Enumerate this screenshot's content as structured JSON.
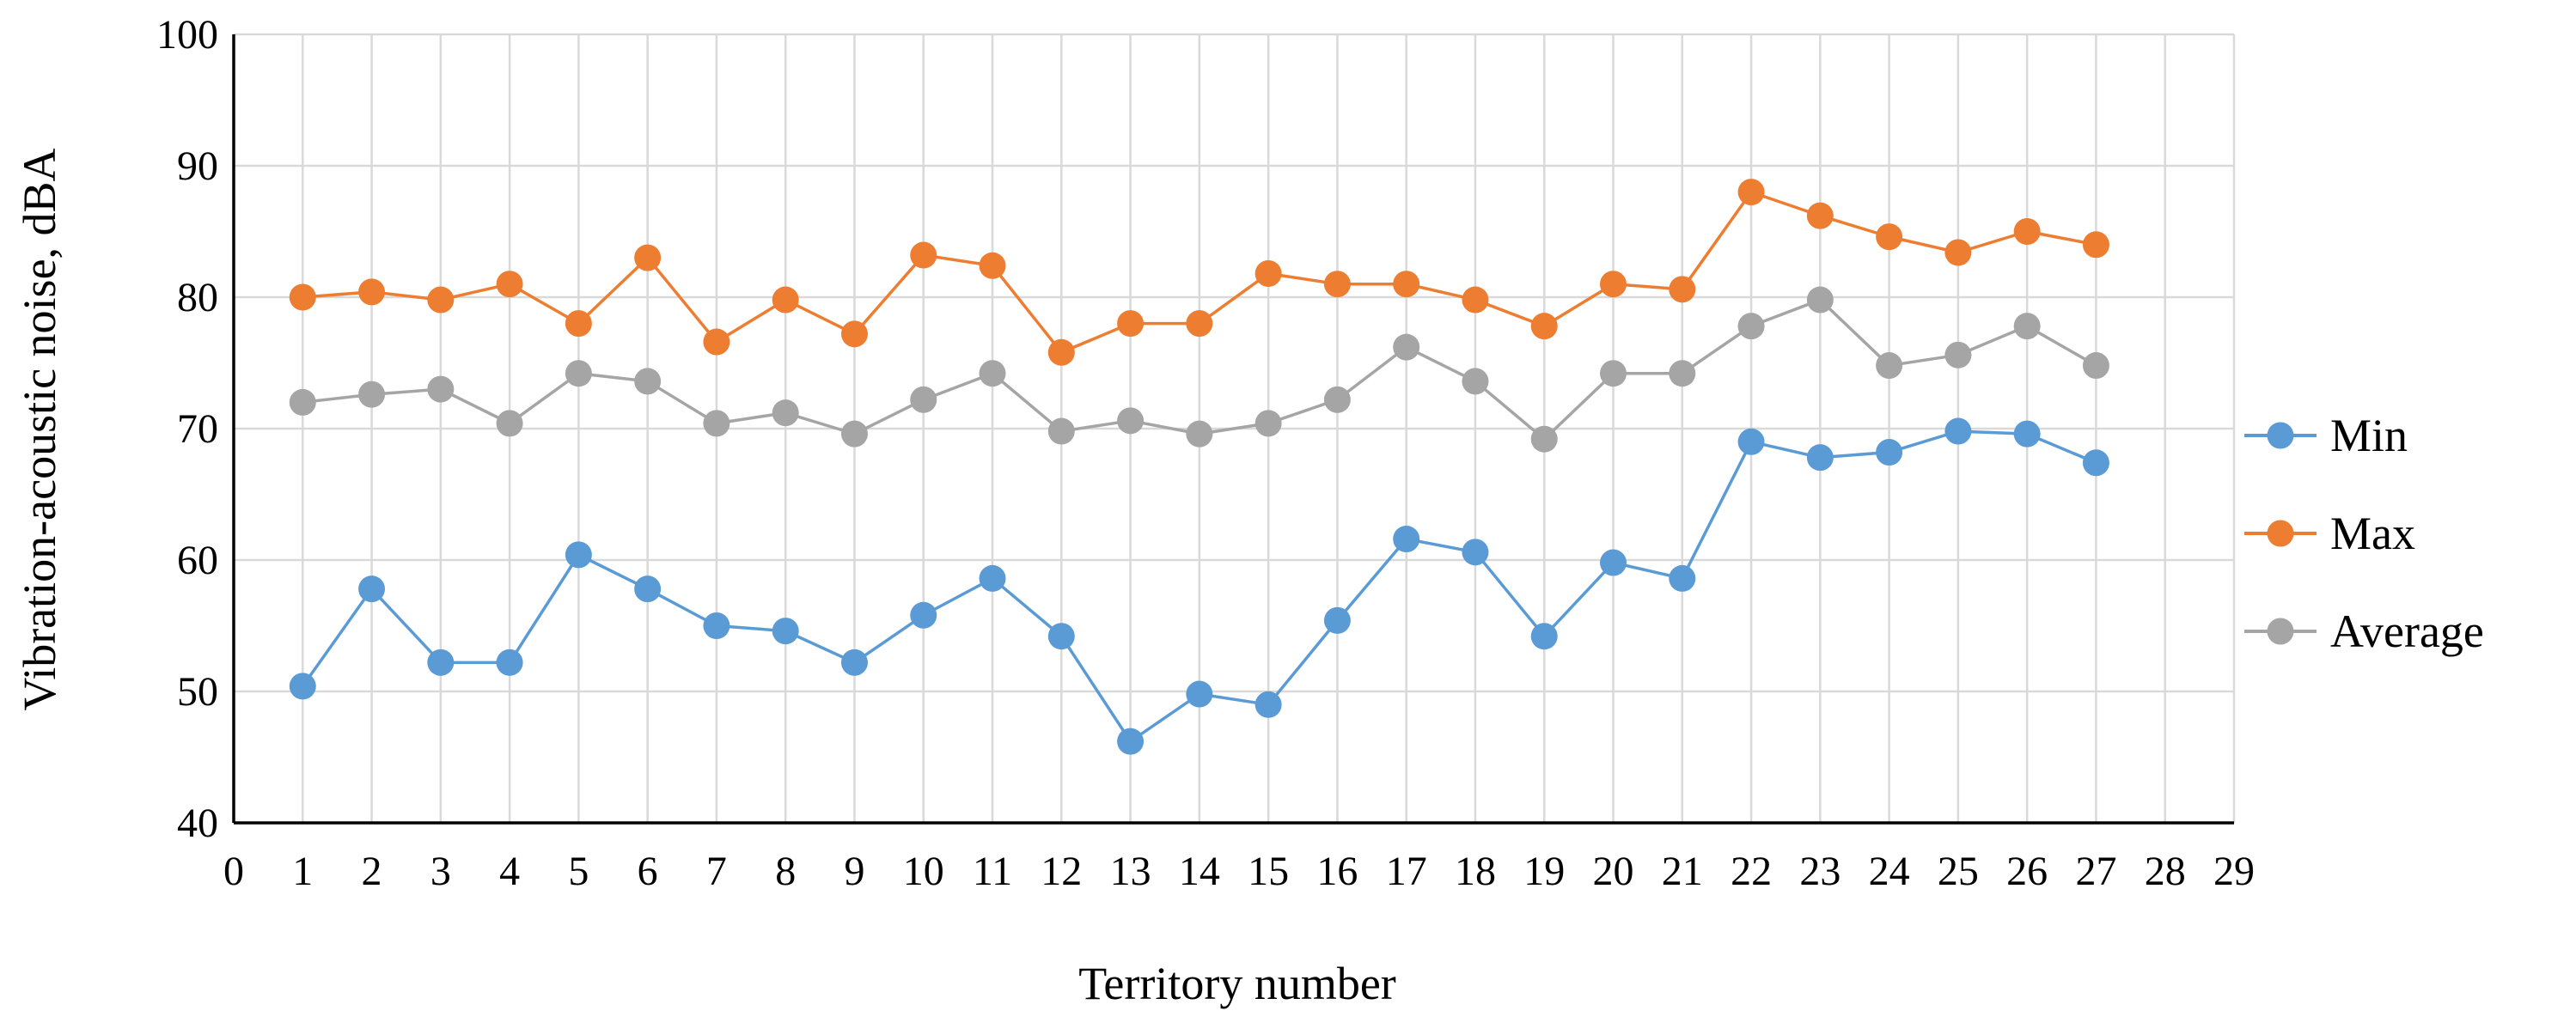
{
  "chart_data": {
    "type": "line",
    "xlabel": "Territory number",
    "ylabel": "Vibration-acoustic noise, dBA",
    "xlim": [
      0,
      29
    ],
    "ylim": [
      40,
      100
    ],
    "x_ticks": [
      0,
      1,
      2,
      3,
      4,
      5,
      6,
      7,
      8,
      9,
      10,
      11,
      12,
      13,
      14,
      15,
      16,
      17,
      18,
      19,
      20,
      21,
      22,
      23,
      24,
      25,
      26,
      27,
      28,
      29
    ],
    "y_ticks": [
      40,
      50,
      60,
      70,
      80,
      90,
      100
    ],
    "grid": true,
    "legend_position": "right",
    "x": [
      1,
      2,
      3,
      4,
      5,
      6,
      7,
      8,
      9,
      10,
      11,
      12,
      13,
      14,
      15,
      16,
      17,
      18,
      19,
      20,
      21,
      22,
      23,
      24,
      25,
      26,
      27
    ],
    "series": [
      {
        "name": "Min",
        "color": "#5b9bd5",
        "values": [
          50.4,
          57.8,
          52.2,
          52.2,
          60.4,
          57.8,
          55.0,
          54.6,
          52.2,
          55.8,
          58.6,
          54.2,
          46.2,
          49.8,
          49.0,
          55.4,
          61.6,
          60.6,
          54.2,
          59.8,
          58.6,
          69.0,
          67.8,
          68.2,
          69.8,
          69.6,
          67.4
        ]
      },
      {
        "name": "Max",
        "color": "#ed7d31",
        "values": [
          80.0,
          80.4,
          79.8,
          81.0,
          78.0,
          83.0,
          76.6,
          79.8,
          77.2,
          83.2,
          82.4,
          75.8,
          78.0,
          78.0,
          81.8,
          81.0,
          81.0,
          79.8,
          77.8,
          81.0,
          80.6,
          88.0,
          86.2,
          84.6,
          83.4,
          85.0,
          84.0
        ]
      },
      {
        "name": "Average",
        "color": "#a5a5a5",
        "values": [
          72.0,
          72.6,
          73.0,
          70.4,
          74.2,
          73.6,
          70.4,
          71.2,
          69.6,
          72.2,
          74.2,
          69.8,
          70.6,
          69.6,
          70.4,
          72.2,
          76.2,
          73.6,
          69.2,
          74.2,
          74.2,
          77.8,
          79.8,
          74.8,
          75.6,
          77.8,
          74.8
        ]
      }
    ]
  }
}
